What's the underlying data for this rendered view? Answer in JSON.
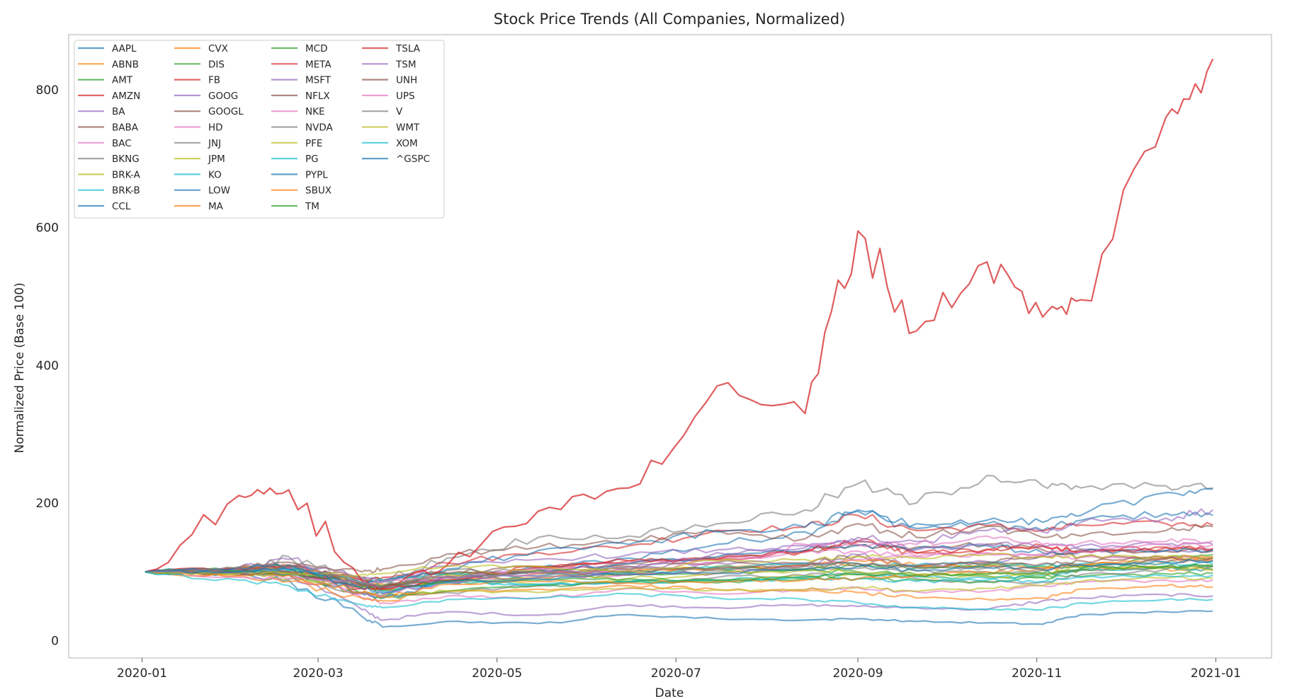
{
  "chart_data": {
    "type": "line",
    "title": "Stock Price Trends (All Companies, Normalized)",
    "xlabel": "Date",
    "ylabel": "Normalized Price (Base 100)",
    "x_ticks": [
      "2020-01",
      "2020-03",
      "2020-05",
      "2020-07",
      "2020-09",
      "2020-11",
      "2021-01"
    ],
    "y_ticks": [
      0,
      200,
      400,
      600,
      800
    ],
    "xlim": [
      "2019-12-07",
      "2021-01-20"
    ],
    "ylim": [
      -25,
      880
    ],
    "grid": false,
    "legend_position": "upper-left",
    "legend_columns": 4,
    "x": [
      "2020-01-02",
      "2020-02-03",
      "2020-02-20",
      "2020-03-16",
      "2020-03-23",
      "2020-04-14",
      "2020-05-15",
      "2020-06-15",
      "2020-07-15",
      "2020-08-14",
      "2020-09-01",
      "2020-09-21",
      "2020-10-15",
      "2020-11-03",
      "2020-11-16",
      "2020-12-15",
      "2020-12-31"
    ],
    "series": [
      {
        "name": "AAPL",
        "color": "#1f77b4",
        "values": [
          100,
          102,
          110,
          70,
          68,
          87,
          105,
          120,
          140,
          158,
          190,
          163,
          170,
          160,
          175,
          185,
          182
        ]
      },
      {
        "name": "ABNB",
        "color": "#ff7f0e",
        "values": [
          100,
          99,
          100,
          88,
          82,
          88,
          92,
          98,
          104,
          108,
          112,
          108,
          110,
          106,
          108,
          104,
          102
        ]
      },
      {
        "name": "AMT",
        "color": "#2ca02c",
        "values": [
          100,
          104,
          108,
          80,
          76,
          96,
          102,
          100,
          108,
          102,
          100,
          96,
          94,
          92,
          93,
          97,
          98
        ]
      },
      {
        "name": "AMZN",
        "color": "#d62728",
        "values": [
          100,
          103,
          108,
          88,
          92,
          113,
          128,
          138,
          160,
          165,
          182,
          160,
          167,
          160,
          168,
          170,
          168
        ]
      },
      {
        "name": "BA",
        "color": "#9467bd",
        "values": [
          100,
          98,
          97,
          45,
          30,
          42,
          37,
          52,
          48,
          52,
          50,
          48,
          45,
          58,
          62,
          67,
          65
        ]
      },
      {
        "name": "BABA",
        "color": "#8c564b",
        "values": [
          100,
          102,
          108,
          92,
          88,
          98,
          108,
          112,
          120,
          130,
          138,
          136,
          140,
          132,
          122,
          118,
          120
        ]
      },
      {
        "name": "BAC",
        "color": "#e377c2",
        "values": [
          100,
          97,
          98,
          62,
          55,
          65,
          62,
          76,
          68,
          74,
          77,
          71,
          72,
          80,
          85,
          88,
          88
        ]
      },
      {
        "name": "BKNG",
        "color": "#7f7f7f",
        "values": [
          100,
          98,
          95,
          70,
          65,
          70,
          80,
          85,
          92,
          95,
          98,
          90,
          85,
          85,
          96,
          104,
          108
        ]
      },
      {
        "name": "BRK-A",
        "color": "#bcbd22",
        "values": [
          100,
          99,
          98,
          80,
          78,
          86,
          82,
          87,
          88,
          94,
          96,
          93,
          92,
          96,
          103,
          106,
          104
        ]
      },
      {
        "name": "BRK-B",
        "color": "#17becf",
        "values": [
          100,
          99,
          98,
          80,
          77,
          85,
          82,
          86,
          88,
          94,
          96,
          93,
          91,
          95,
          102,
          105,
          103
        ]
      },
      {
        "name": "CCL",
        "color": "#1f77b4",
        "values": [
          100,
          95,
          88,
          35,
          20,
          28,
          25,
          38,
          32,
          30,
          32,
          28,
          26,
          24,
          38,
          42,
          43
        ]
      },
      {
        "name": "CVX",
        "color": "#ff7f0e",
        "values": [
          100,
          94,
          86,
          62,
          58,
          72,
          75,
          80,
          74,
          72,
          70,
          62,
          60,
          62,
          75,
          80,
          78
        ]
      },
      {
        "name": "DIS",
        "color": "#2ca02c",
        "values": [
          100,
          100,
          98,
          68,
          62,
          72,
          80,
          85,
          84,
          90,
          90,
          88,
          86,
          92,
          105,
          120,
          125
        ]
      },
      {
        "name": "FB",
        "color": "#d62728",
        "values": [
          100,
          105,
          107,
          76,
          75,
          87,
          107,
          116,
          118,
          131,
          145,
          128,
          133,
          138,
          130,
          136,
          133
        ]
      },
      {
        "name": "GOOG",
        "color": "#9467bd",
        "values": [
          100,
          103,
          110,
          82,
          78,
          93,
          102,
          107,
          113,
          113,
          125,
          108,
          115,
          124,
          133,
          131,
          131
        ]
      },
      {
        "name": "GOOGL",
        "color": "#8c564b",
        "values": [
          100,
          103,
          110,
          82,
          79,
          94,
          103,
          108,
          114,
          112,
          124,
          107,
          114,
          123,
          132,
          130,
          130
        ]
      },
      {
        "name": "HD",
        "color": "#e377c2",
        "values": [
          100,
          103,
          106,
          78,
          75,
          90,
          105,
          113,
          118,
          128,
          130,
          123,
          126,
          124,
          121,
          121,
          122
        ]
      },
      {
        "name": "JNJ",
        "color": "#7f7f7f",
        "values": [
          100,
          102,
          100,
          90,
          86,
          102,
          102,
          96,
          101,
          104,
          105,
          101,
          100,
          98,
          103,
          108,
          108
        ]
      },
      {
        "name": "JPM",
        "color": "#bcbd22",
        "values": [
          100,
          98,
          98,
          70,
          66,
          72,
          70,
          77,
          74,
          74,
          78,
          72,
          76,
          80,
          86,
          91,
          91
        ]
      },
      {
        "name": "KO",
        "color": "#17becf",
        "values": [
          100,
          105,
          108,
          82,
          72,
          86,
          82,
          85,
          86,
          90,
          90,
          86,
          88,
          86,
          92,
          94,
          95
        ]
      },
      {
        "name": "LOW",
        "color": "#1f77b4",
        "values": [
          100,
          102,
          104,
          70,
          62,
          84,
          102,
          112,
          122,
          131,
          139,
          134,
          138,
          128,
          129,
          131,
          132
        ]
      },
      {
        "name": "MA",
        "color": "#ff7f0e",
        "values": [
          100,
          104,
          110,
          78,
          74,
          88,
          97,
          104,
          104,
          110,
          116,
          110,
          108,
          102,
          110,
          114,
          118
        ]
      },
      {
        "name": "MCD",
        "color": "#2ca02c",
        "values": [
          100,
          101,
          102,
          78,
          74,
          88,
          92,
          95,
          98,
          104,
          108,
          106,
          110,
          108,
          106,
          108,
          108
        ]
      },
      {
        "name": "META",
        "color": "#d62728",
        "values": [
          100,
          105,
          107,
          76,
          75,
          87,
          107,
          116,
          118,
          130,
          144,
          127,
          132,
          137,
          129,
          135,
          134
        ]
      },
      {
        "name": "MSFT",
        "color": "#9467bd",
        "values": [
          100,
          106,
          118,
          90,
          88,
          108,
          118,
          125,
          132,
          135,
          145,
          132,
          140,
          138,
          138,
          140,
          140
        ]
      },
      {
        "name": "NFLX",
        "color": "#8c564b",
        "values": [
          100,
          107,
          114,
          100,
          104,
          126,
          136,
          147,
          160,
          148,
          170,
          150,
          166,
          150,
          152,
          160,
          166
        ]
      },
      {
        "name": "NKE",
        "color": "#e377c2",
        "values": [
          100,
          98,
          96,
          68,
          66,
          86,
          92,
          96,
          98,
          108,
          118,
          122,
          128,
          126,
          130,
          140,
          139
        ]
      },
      {
        "name": "NVDA",
        "color": "#7f7f7f",
        "values": [
          100,
          100,
          122,
          84,
          88,
          120,
          150,
          152,
          170,
          190,
          228,
          200,
          240,
          225,
          222,
          225,
          222
        ]
      },
      {
        "name": "PFE",
        "color": "#bcbd22",
        "values": [
          100,
          98,
          90,
          82,
          80,
          96,
          102,
          90,
          98,
          102,
          100,
          96,
          96,
          98,
          108,
          106,
          104
        ]
      },
      {
        "name": "PG",
        "color": "#17becf",
        "values": [
          100,
          100,
          102,
          85,
          88,
          98,
          94,
          98,
          106,
          112,
          112,
          110,
          112,
          110,
          112,
          112,
          112
        ]
      },
      {
        "name": "PYPL",
        "color": "#1f77b4",
        "values": [
          100,
          106,
          110,
          84,
          85,
          104,
          131,
          140,
          158,
          165,
          188,
          170,
          175,
          172,
          182,
          215,
          220
        ]
      },
      {
        "name": "SBUX",
        "color": "#ff7f0e",
        "values": [
          100,
          95,
          95,
          70,
          64,
          82,
          86,
          84,
          86,
          88,
          90,
          96,
          100,
          104,
          110,
          120,
          122
        ]
      },
      {
        "name": "TM",
        "color": "#2ca02c",
        "values": [
          100,
          99,
          97,
          82,
          80,
          86,
          88,
          90,
          88,
          92,
          96,
          95,
          97,
          98,
          104,
          108,
          110
        ]
      },
      {
        "name": "TSLA",
        "color": "#d62728",
        "values": [
          100,
          211,
          219,
          87,
          76,
          110,
          188,
          222,
          370,
          330,
          595,
          450,
          550,
          470,
          495,
          760,
          845
        ]
      },
      {
        "name": "TSM",
        "color": "#9467bd",
        "values": [
          100,
          98,
          100,
          82,
          78,
          92,
          94,
          102,
          128,
          138,
          150,
          144,
          160,
          158,
          172,
          178,
          190
        ]
      },
      {
        "name": "UNH",
        "color": "#8c564b",
        "values": [
          100,
          98,
          100,
          80,
          78,
          98,
          98,
          100,
          106,
          110,
          112,
          108,
          112,
          112,
          116,
          120,
          121
        ]
      },
      {
        "name": "UPS",
        "color": "#e377c2",
        "values": [
          100,
          92,
          90,
          84,
          86,
          92,
          98,
          102,
          114,
          140,
          140,
          140,
          152,
          140,
          142,
          144,
          145
        ]
      },
      {
        "name": "V",
        "color": "#7f7f7f",
        "values": [
          100,
          105,
          108,
          84,
          80,
          92,
          100,
          104,
          104,
          108,
          112,
          106,
          106,
          102,
          110,
          114,
          116
        ]
      },
      {
        "name": "WMT",
        "color": "#bcbd22",
        "values": [
          100,
          98,
          98,
          96,
          98,
          108,
          108,
          102,
          116,
          118,
          122,
          120,
          125,
          122,
          122,
          122,
          120
        ]
      },
      {
        "name": "XOM",
        "color": "#17becf",
        "values": [
          100,
          88,
          80,
          52,
          48,
          60,
          62,
          68,
          62,
          60,
          55,
          48,
          46,
          45,
          55,
          60,
          60
        ]
      },
      {
        "name": "^GSPC",
        "color": "#1f77b4",
        "values": [
          100,
          100,
          104,
          76,
          70,
          86,
          90,
          97,
          98,
          104,
          108,
          102,
          106,
          104,
          110,
          114,
          116
        ]
      }
    ]
  }
}
